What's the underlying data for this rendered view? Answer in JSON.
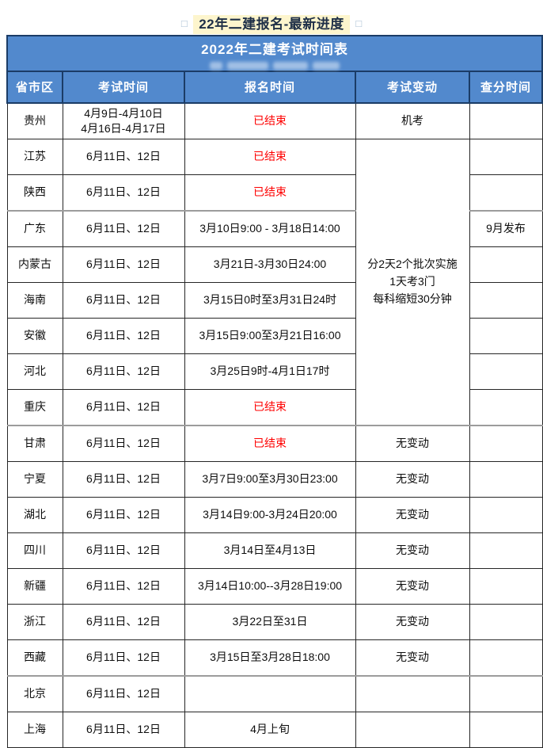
{
  "page_title": {
    "prefix_square": "□",
    "text": "22年二建报名-最新进度",
    "suffix_square": "□"
  },
  "table": {
    "title": "2022年二建考试时间表",
    "columns": [
      "省市区",
      "考试时间",
      "报名时间",
      "考试变动",
      "查分时间"
    ],
    "merged_exam_change": {
      "lines": [
        "分2天2个批次实施",
        "1天考3门",
        "每科缩短30分钟"
      ],
      "row_span": 8
    },
    "rows": [
      {
        "province": "贵州",
        "exam_time": [
          "4月9日-4月10日",
          "4月16日-4月17日"
        ],
        "registration": "已结束",
        "registration_closed": true,
        "change": "机考",
        "change_merge": null,
        "score": "",
        "sep": false
      },
      {
        "province": "江苏",
        "exam_time": [
          "6月11日、12日"
        ],
        "registration": "已结束",
        "registration_closed": true,
        "change": "",
        "change_merge": "start",
        "score": "",
        "sep": false
      },
      {
        "province": "陕西",
        "exam_time": [
          "6月11日、12日"
        ],
        "registration": "已结束",
        "registration_closed": true,
        "change": "",
        "change_merge": "spanned",
        "score": "",
        "sep": false
      },
      {
        "province": "广东",
        "exam_time": [
          "6月11日、12日"
        ],
        "registration": "3月10日9:00 - 3月18日14:00",
        "registration_closed": false,
        "change": "",
        "change_merge": "spanned",
        "score": "9月发布",
        "sep": true
      },
      {
        "province": "内蒙古",
        "exam_time": [
          "6月11日、12日"
        ],
        "registration": "3月21日-3月30日24:00",
        "registration_closed": false,
        "change": "",
        "change_merge": "spanned",
        "score": "",
        "sep": false
      },
      {
        "province": "海南",
        "exam_time": [
          "6月11日、12日"
        ],
        "registration": "3月15日0时至3月31日24时",
        "registration_closed": false,
        "change": "",
        "change_merge": "spanned",
        "score": "",
        "sep": false
      },
      {
        "province": "安徽",
        "exam_time": [
          "6月11日、12日"
        ],
        "registration": "3月15日9:00至3月21日16:00",
        "registration_closed": false,
        "change": "",
        "change_merge": "spanned",
        "score": "",
        "sep": false
      },
      {
        "province": "河北",
        "exam_time": [
          "6月11日、12日"
        ],
        "registration": "3月25日9时-4月1日17时",
        "registration_closed": false,
        "change": "",
        "change_merge": "spanned",
        "score": "",
        "sep": false
      },
      {
        "province": "重庆",
        "exam_time": [
          "6月11日、12日"
        ],
        "registration": "已结束",
        "registration_closed": true,
        "change": "",
        "change_merge": "spanned",
        "score": "",
        "sep": false
      },
      {
        "province": "甘肃",
        "exam_time": [
          "6月11日、12日"
        ],
        "registration": "已结束",
        "registration_closed": true,
        "change": "无变动",
        "change_merge": null,
        "score": "",
        "sep": true
      },
      {
        "province": "宁夏",
        "exam_time": [
          "6月11日、12日"
        ],
        "registration": "3月7日9:00至3月30日23:00",
        "registration_closed": false,
        "change": "无变动",
        "change_merge": null,
        "score": "",
        "sep": false
      },
      {
        "province": "湖北",
        "exam_time": [
          "6月11日、12日"
        ],
        "registration": "3月14日9:00-3月24日20:00",
        "registration_closed": false,
        "change": "无变动",
        "change_merge": null,
        "score": "",
        "sep": false
      },
      {
        "province": "四川",
        "exam_time": [
          "6月11日、12日"
        ],
        "registration": "3月14日至4月13日",
        "registration_closed": false,
        "change": "无变动",
        "change_merge": null,
        "score": "",
        "sep": false
      },
      {
        "province": "新疆",
        "exam_time": [
          "6月11日、12日"
        ],
        "registration": "3月14日10:00--3月28日19:00",
        "registration_closed": false,
        "change": "无变动",
        "change_merge": null,
        "score": "",
        "sep": false
      },
      {
        "province": "浙江",
        "exam_time": [
          "6月11日、12日"
        ],
        "registration": "3月22日至31日",
        "registration_closed": false,
        "change": "无变动",
        "change_merge": null,
        "score": "",
        "sep": false
      },
      {
        "province": "西藏",
        "exam_time": [
          "6月11日、12日"
        ],
        "registration": "3月15日至3月28日18:00",
        "registration_closed": false,
        "change": "无变动",
        "change_merge": null,
        "score": "",
        "sep": false
      },
      {
        "province": "北京",
        "exam_time": [
          "6月11日、12日"
        ],
        "registration": "",
        "registration_closed": false,
        "change": "",
        "change_merge": null,
        "score": "",
        "sep": true
      },
      {
        "province": "上海",
        "exam_time": [
          "6月11日、12日"
        ],
        "registration": "4月上旬",
        "registration_closed": false,
        "change": "",
        "change_merge": null,
        "score": "",
        "sep": false
      }
    ]
  },
  "colors": {
    "header_blue": "#5289cd",
    "border_navy": "#1b3c66",
    "highlight_yellow": "#fdf5cd",
    "closed_red": "#fe0000",
    "headline_text": "#1e2f47",
    "grid_line": "#262626",
    "section_separator_gray": "#9c9c9c"
  }
}
